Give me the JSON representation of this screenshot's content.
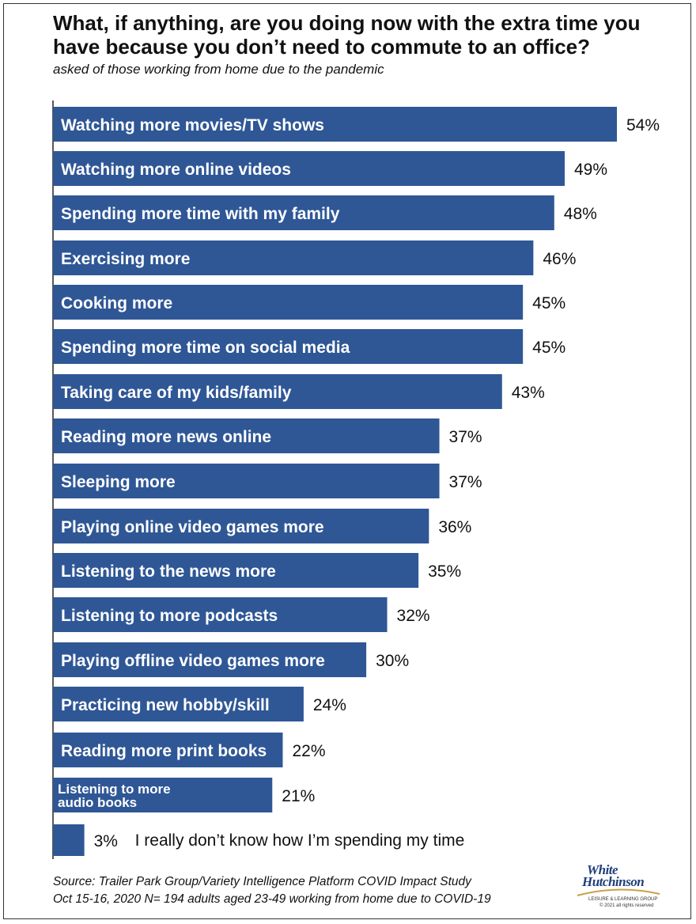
{
  "title": "What, if anything, are you doing now with the extra time you have because you don’t need to commute to an office?",
  "subtitle": "asked of those working from home due to the pandemic",
  "chart_data": {
    "type": "bar",
    "orientation": "horizontal",
    "title": "What, if anything, are you doing now with the extra time you have because you don’t need to commute to an office?",
    "subtitle": "asked of those working from home due to the pandemic",
    "categories": [
      "Watching more movies/TV shows",
      "Watching more online videos",
      "Spending more time with my family",
      "Exercising more",
      "Cooking more",
      "Spending more time on social media",
      "Taking care of my kids/family",
      "Reading more news online",
      "Sleeping more",
      "Playing online video games more",
      "Listening to the news more",
      "Listening to more podcasts",
      "Playing offline video games more",
      "Practicing new hobby/skill",
      "Reading more print books",
      "Listening to more audio books",
      "I really don’t know how I’m spending my time"
    ],
    "values": [
      54,
      49,
      48,
      46,
      45,
      45,
      43,
      37,
      37,
      36,
      35,
      32,
      30,
      24,
      22,
      21,
      3
    ],
    "value_labels": [
      "54%",
      "49%",
      "48%",
      "46%",
      "45%",
      "45%",
      "43%",
      "37%",
      "37%",
      "36%",
      "35%",
      "32%",
      "30%",
      "24%",
      "22%",
      "21%",
      "3%"
    ],
    "bar_color": "#2f5796",
    "xlim": [
      0,
      54
    ],
    "grid": false,
    "legend": "none"
  },
  "source": {
    "line1": "Source: Trailer Park Group/Variety Intelligence Platform COVID Impact Study",
    "line2": "Oct 15-16, 2020 N= 194 adults aged 23-49 working from home due to COVID-19"
  },
  "logo": {
    "line1": "White",
    "line2": "Hutchinson",
    "tagline": "LEISURE & LEARNING GROUP",
    "copyright": "© 2021 all rights reserved"
  }
}
